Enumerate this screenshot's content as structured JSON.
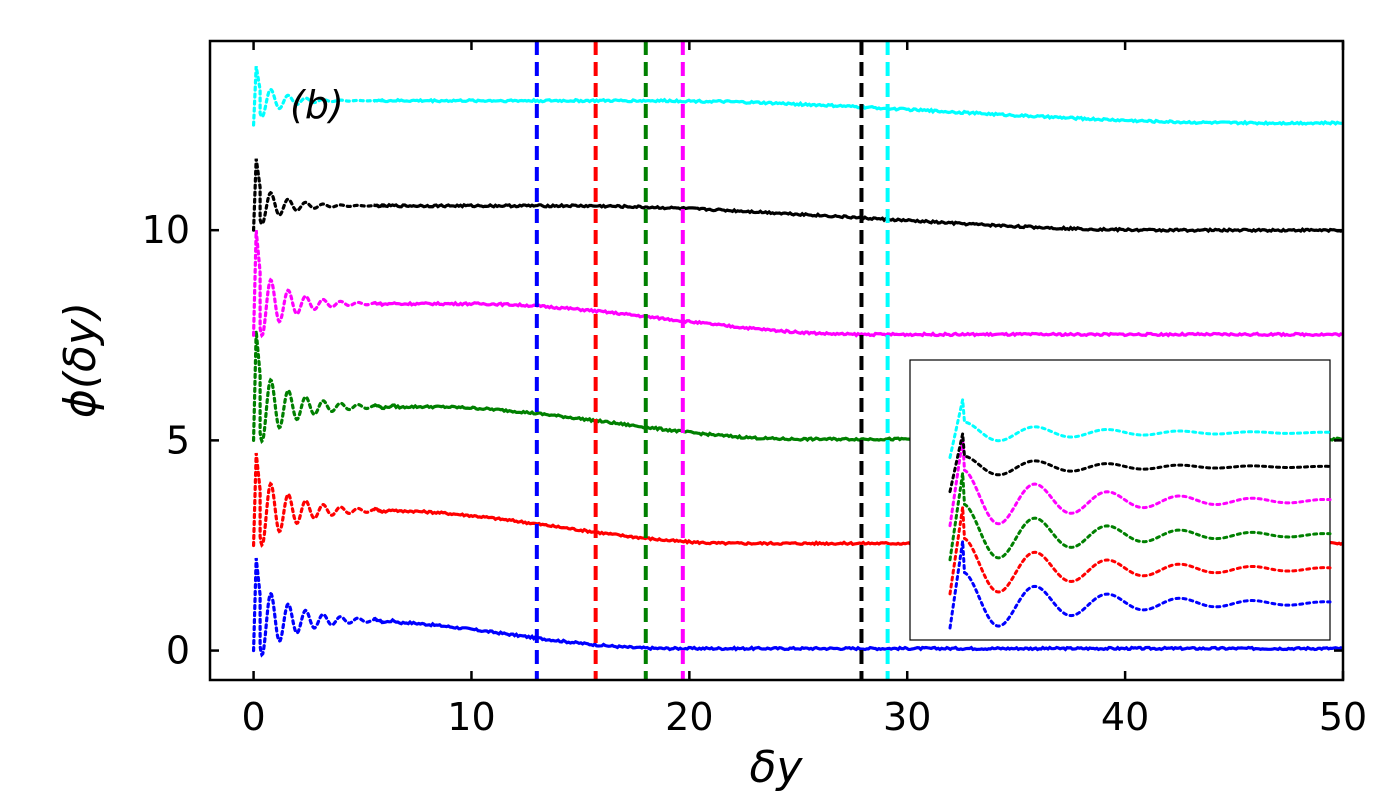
{
  "chart_data": {
    "type": "line",
    "panel_label": "(b)",
    "xlabel": "δy",
    "ylabel": "ϕ(δy)",
    "xlim": [
      -2,
      50
    ],
    "ylim": [
      -0.7,
      14.5
    ],
    "xticks": [
      0,
      10,
      20,
      30,
      40,
      50
    ],
    "xtick_labels": [
      "0",
      "10",
      "20",
      "30",
      "40",
      "50"
    ],
    "yticks": [
      0,
      5,
      10
    ],
    "ytick_labels": [
      "0",
      "5",
      "10"
    ],
    "grid": false,
    "colors": {
      "blue": "#0000ff",
      "red": "#ff0000",
      "green": "#008000",
      "magenta": "#ff00ff",
      "black": "#000000",
      "cyan": "#00ffff"
    },
    "series": [
      {
        "name": "blue",
        "color": "#0000ff",
        "offset": 0.0,
        "base_start": 0.72,
        "base_end": 0.05,
        "transition_x": [
          4.5,
          19
        ],
        "end_dip": 0.0,
        "peak": 2.2,
        "ripple_amp": 1.05,
        "decay": 1.6,
        "vline_x": 13.0
      },
      {
        "name": "red",
        "color": "#ff0000",
        "offset": 2.5,
        "base_start": 0.83,
        "base_end": 0.05,
        "transition_x": [
          6,
          22
        ],
        "end_dip": 0.0,
        "peak": 2.2,
        "ripple_amp": 1.05,
        "decay": 1.6,
        "vline_x": 15.7
      },
      {
        "name": "green",
        "color": "#008000",
        "offset": 5.0,
        "base_start": 0.8,
        "base_end": 0.03,
        "transition_x": [
          8,
          25
        ],
        "end_dip": 0.0,
        "peak": 2.6,
        "ripple_amp": 1.05,
        "decay": 1.6,
        "vline_x": 18.0
      },
      {
        "name": "magenta",
        "color": "#ff00ff",
        "offset": 7.5,
        "base_start": 0.75,
        "base_end": 0.02,
        "transition_x": [
          10,
          28
        ],
        "end_dip": 0.0,
        "peak": 2.5,
        "ripple_amp": 1.0,
        "decay": 1.4,
        "vline_x": 19.7
      },
      {
        "name": "black",
        "color": "#000000",
        "offset": 10.0,
        "base_start": 0.58,
        "base_end": 0.0,
        "transition_x": [
          14,
          42
        ],
        "end_dip": 0.0,
        "peak": 1.7,
        "ripple_amp": 0.6,
        "decay": 1.2,
        "vline_x": 27.9
      },
      {
        "name": "cyan",
        "color": "#00ffff",
        "offset": 12.5,
        "base_start": 0.58,
        "base_end": 0.05,
        "transition_x": [
          18,
          46
        ],
        "end_dip": 0.0,
        "peak": 1.4,
        "ripple_amp": 0.55,
        "decay": 1.1,
        "vline_x": 29.1
      }
    ],
    "inset": {
      "description": "zoom of curves near δy = 0",
      "xlim": [
        0,
        4.2
      ],
      "series_offsets": [
        0.0,
        1.1,
        2.2,
        3.3,
        4.4,
        5.5
      ]
    }
  }
}
